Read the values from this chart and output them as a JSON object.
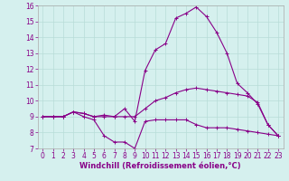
{
  "xlabel": "Windchill (Refroidissement éolien,°C)",
  "ylabel": "",
  "background_color": "#d5f0ee",
  "grid_color": "#b8dcd8",
  "line_color": "#880088",
  "x_hours": [
    0,
    1,
    2,
    3,
    4,
    5,
    6,
    7,
    8,
    9,
    10,
    11,
    12,
    13,
    14,
    15,
    16,
    17,
    18,
    19,
    20,
    21,
    22,
    23
  ],
  "line1": [
    9.0,
    9.0,
    9.0,
    9.3,
    9.0,
    8.8,
    7.8,
    7.4,
    7.4,
    7.0,
    8.7,
    8.8,
    8.8,
    8.8,
    8.8,
    8.5,
    8.3,
    8.3,
    8.3,
    8.2,
    8.1,
    8.0,
    7.9,
    7.8
  ],
  "line2": [
    9.0,
    9.0,
    9.0,
    9.3,
    9.2,
    9.0,
    9.0,
    9.0,
    9.0,
    9.0,
    9.5,
    10.0,
    10.2,
    10.5,
    10.7,
    10.8,
    10.7,
    10.6,
    10.5,
    10.4,
    10.3,
    9.9,
    8.5,
    7.8
  ],
  "line3": [
    9.0,
    9.0,
    9.0,
    9.3,
    9.2,
    9.0,
    9.1,
    9.0,
    9.5,
    8.7,
    11.9,
    13.2,
    13.6,
    15.2,
    15.5,
    15.9,
    15.3,
    14.3,
    13.0,
    11.1,
    10.5,
    9.8,
    8.5,
    7.8
  ],
  "xlim": [
    -0.5,
    23.5
  ],
  "ylim": [
    7,
    16
  ],
  "yticks": [
    7,
    8,
    9,
    10,
    11,
    12,
    13,
    14,
    15,
    16
  ],
  "xticks": [
    0,
    1,
    2,
    3,
    4,
    5,
    6,
    7,
    8,
    9,
    10,
    11,
    12,
    13,
    14,
    15,
    16,
    17,
    18,
    19,
    20,
    21,
    22,
    23
  ],
  "marker": "+",
  "markersize": 3,
  "linewidth": 0.8,
  "fontsize_tick": 5.5,
  "fontsize_label": 6.0
}
